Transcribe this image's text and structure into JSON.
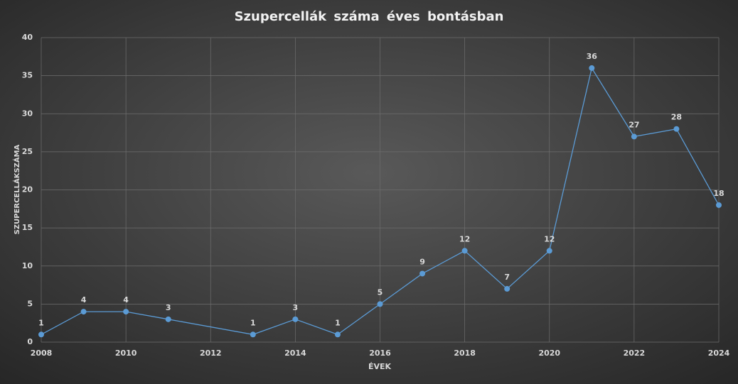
{
  "chart_data": {
    "type": "line",
    "title": "Szupercellák száma éves bontásban",
    "x_label": "ÉVEK",
    "y_label": "SZUPERCELLÁKSZÁMA",
    "x": [
      2008,
      2009,
      2010,
      2011,
      2013,
      2014,
      2015,
      2016,
      2017,
      2018,
      2019,
      2020,
      2021,
      2022,
      2023,
      2024
    ],
    "series": [
      {
        "name": "Szupercellák",
        "color": "#5b9bd5",
        "values": [
          1,
          4,
          4,
          3,
          1,
          3,
          1,
          5,
          9,
          12,
          7,
          12,
          36,
          27,
          28,
          18
        ]
      }
    ],
    "xlim": [
      2008,
      2024
    ],
    "xticks": [
      2008,
      2010,
      2012,
      2014,
      2016,
      2018,
      2020,
      2022,
      2024
    ],
    "ylim": [
      0,
      40
    ],
    "yticks": [
      0,
      5,
      10,
      15,
      20,
      25,
      30,
      35,
      40
    ],
    "grid": true,
    "data_labels": true
  }
}
